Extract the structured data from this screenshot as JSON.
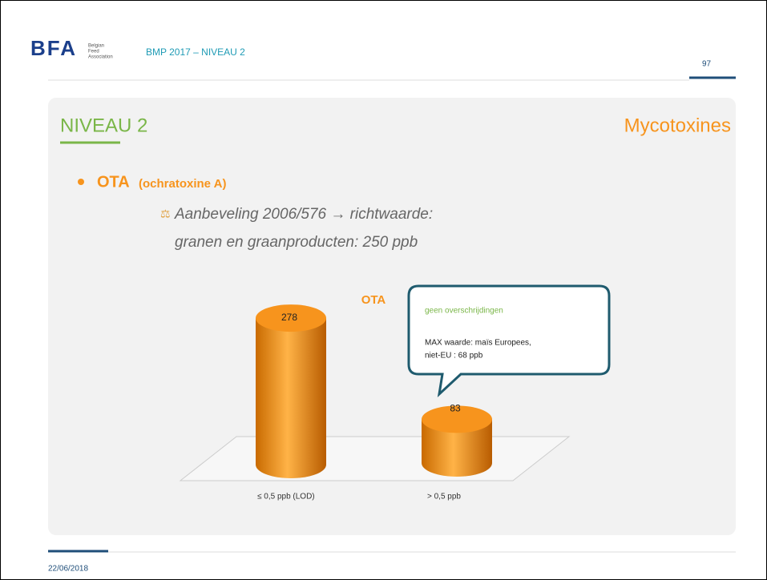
{
  "header": {
    "logo": "BFA",
    "logo_sub": [
      "Belgian",
      "Feed",
      "Association"
    ],
    "title": "BMP 2017 – NIVEAU 2",
    "page": "97"
  },
  "slide": {
    "title": "NIVEAU 2",
    "topic": "Mycotoxines",
    "bullet": "OTA",
    "bullet_note": "(ochratoxine A)",
    "lines": [
      "Aanbeveling 2006/576 → richtwaarde:",
      "granen en graanproducten: 250 ppb"
    ]
  },
  "chart_data": {
    "type": "cylinder",
    "title": "OTA",
    "categories": [
      "≤ 0,5 ppb (LOD)",
      "> 0,5 ppb"
    ],
    "values": [
      278,
      83
    ],
    "color": "#f7941d"
  },
  "callout": {
    "title": "geen overschrijdingen",
    "lines": [
      "MAX waarde: maïs Europees,",
      "niet-EU : 68 ppb"
    ]
  },
  "footer": {
    "date": "22/06/2018"
  }
}
